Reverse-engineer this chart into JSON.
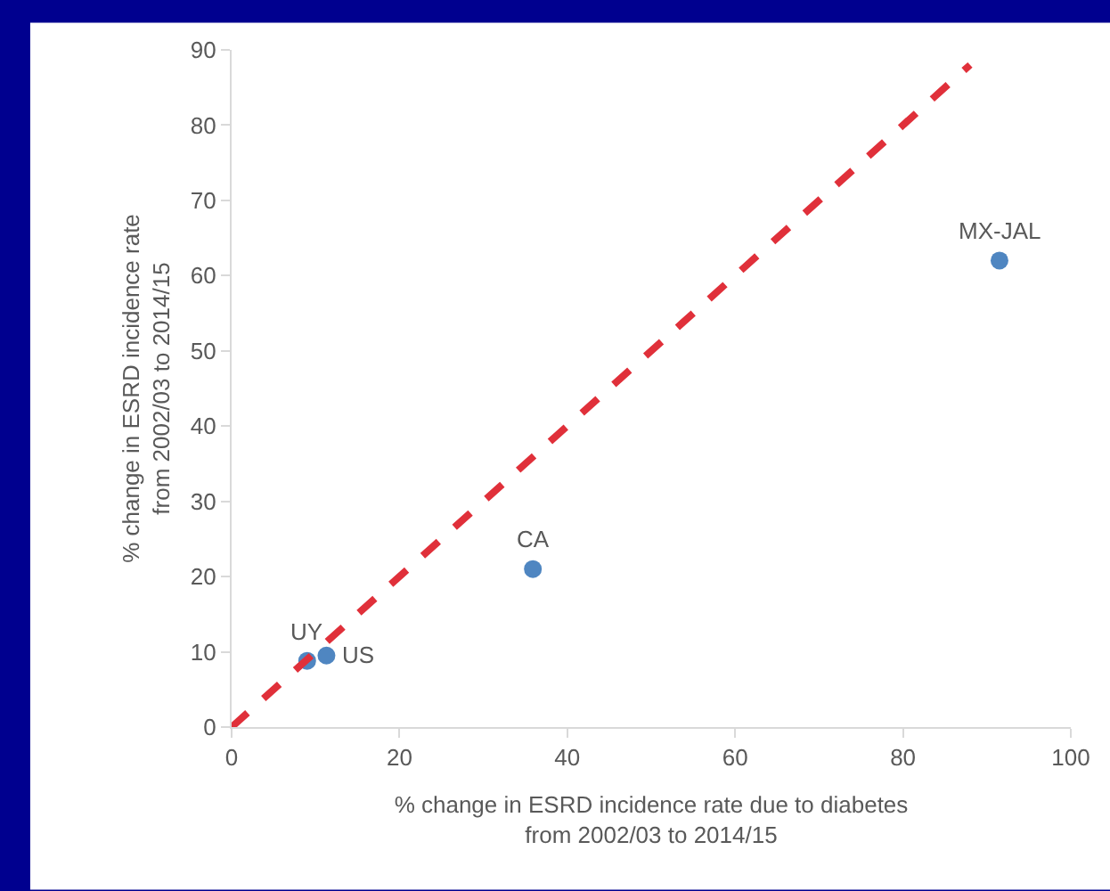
{
  "chart_data": {
    "type": "scatter",
    "xlabel": "% change in ESRD incidence rate due to diabetes\nfrom 2002/03 to 2014/15",
    "ylabel": "% change in ESRD incidence rate\nfrom 2002/03 to 2014/15",
    "xlim": [
      0,
      100
    ],
    "xticks": [
      0,
      20,
      40,
      60,
      80,
      100
    ],
    "ylim": [
      0,
      90
    ],
    "yticks": [
      0,
      10,
      20,
      30,
      40,
      50,
      60,
      70,
      80,
      90
    ],
    "series": [
      {
        "marker": "circle",
        "color": "#4f86c1",
        "x": [
          9,
          11.3,
          35.9,
          91.5
        ],
        "values": [
          8.8,
          9.5,
          21,
          62
        ]
      },
      {
        "type": "line",
        "marker": "none",
        "color": "#e0303a",
        "line_style": "dashed",
        "x": [
          0,
          88
        ],
        "values": [
          0,
          88
        ]
      }
    ],
    "annotations": [
      {
        "text": "UY",
        "x": 9,
        "y": 8.8
      },
      {
        "text": "US",
        "x": 11.3,
        "y": 9.5
      },
      {
        "text": "CA",
        "x": 35.9,
        "y": 21
      },
      {
        "text": "MX-JAL",
        "x": 91.5,
        "y": 62
      }
    ]
  }
}
